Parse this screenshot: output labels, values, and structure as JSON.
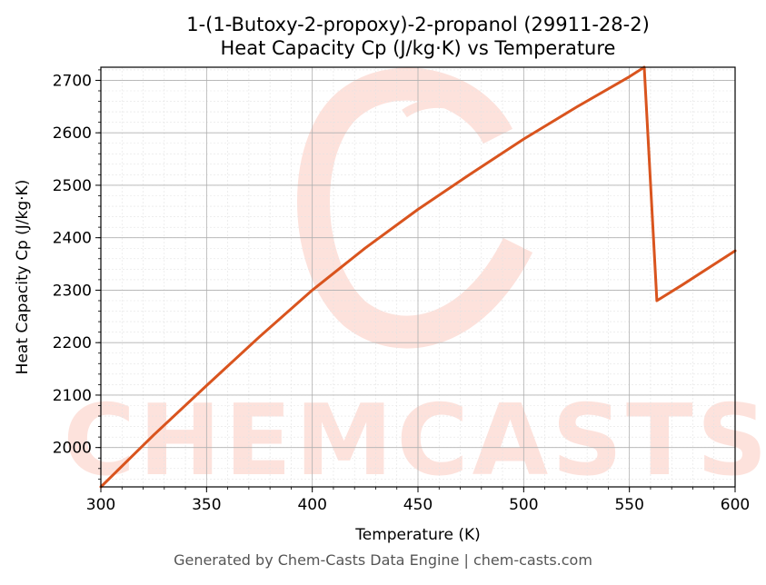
{
  "chart_data": {
    "type": "line",
    "title": "1-(1-Butoxy-2-propoxy)-2-propanol (29911-28-2)",
    "subtitle": "Heat Capacity Cp (J/kg·K) vs Temperature",
    "xlabel": "Temperature (K)",
    "ylabel": "Heat Capacity Cp (J/kg·K)",
    "xlim": [
      300,
      600
    ],
    "ylim": [
      1925,
      2725
    ],
    "xticks": [
      300,
      350,
      400,
      450,
      500,
      550,
      600
    ],
    "yticks": [
      2000,
      2100,
      2200,
      2300,
      2400,
      2500,
      2600,
      2700
    ],
    "grid": true,
    "line_color": "#d9541e",
    "series": [
      {
        "x": [
          300,
          325,
          350,
          375,
          400,
          425,
          450,
          475,
          500,
          525,
          550,
          557,
          563,
          575,
          600
        ],
        "values": [
          1925,
          2024,
          2118,
          2211,
          2300,
          2380,
          2454,
          2522,
          2588,
          2649,
          2707,
          2725,
          2280,
          2310,
          2375
        ]
      }
    ]
  },
  "watermark": {
    "text": "CHEMCASTS",
    "color": "#fde2dc"
  },
  "footer": {
    "text": "Generated by Chem-Casts Data Engine | chem-casts.com"
  }
}
